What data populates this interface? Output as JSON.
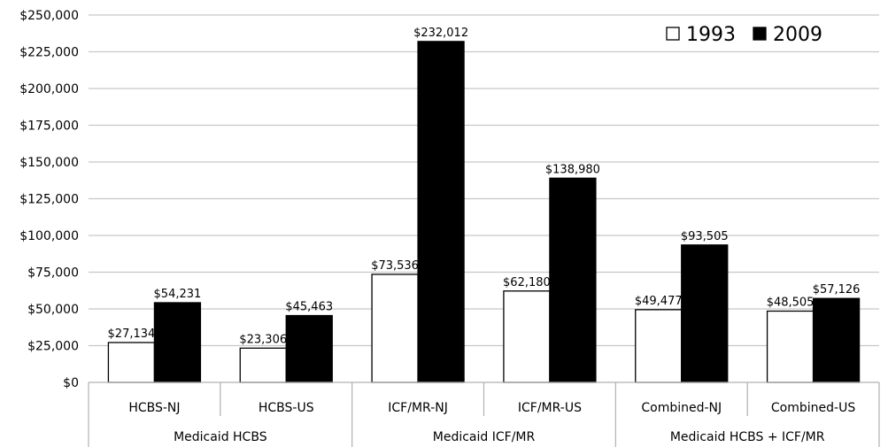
{
  "chart_data": {
    "type": "bar",
    "title": "",
    "xlabel": "",
    "ylabel": "",
    "ylim": [
      0,
      250000
    ],
    "yticks": [
      0,
      25000,
      50000,
      75000,
      100000,
      125000,
      150000,
      175000,
      200000,
      225000,
      250000
    ],
    "ytick_labels": [
      "$0",
      "$25,000",
      "$50,000",
      "$75,000",
      "$100,000",
      "$125,000",
      "$150,000",
      "$175,000",
      "$200,000",
      "$225,000",
      "$250,000"
    ],
    "grid": true,
    "legend_position": "top-right",
    "categories": [
      "HCBS-NJ",
      "HCBS-US",
      "ICF/MR-NJ",
      "ICF/MR-US",
      "Combined-NJ",
      "Combined-US"
    ],
    "groups": [
      {
        "label": "Medicaid HCBS",
        "span": 2
      },
      {
        "label": "Medicaid ICF/MR",
        "span": 2
      },
      {
        "label": "Medicaid HCBS + ICF/MR",
        "span": 2
      }
    ],
    "series": [
      {
        "name": "1993",
        "color": "#ffffff",
        "values": [
          27134,
          23306,
          73536,
          62180,
          49477,
          48505
        ],
        "labels": [
          "$27,134",
          "$23,306",
          "$73,536",
          "$62,180",
          "$49,477",
          "$48,505"
        ]
      },
      {
        "name": "2009",
        "color": "#000000",
        "values": [
          54231,
          45463,
          232012,
          138980,
          93505,
          57126
        ],
        "labels": [
          "$54,231",
          "$45,463",
          "$232,012",
          "$138,980",
          "$93,505",
          "$57,126"
        ]
      }
    ]
  }
}
